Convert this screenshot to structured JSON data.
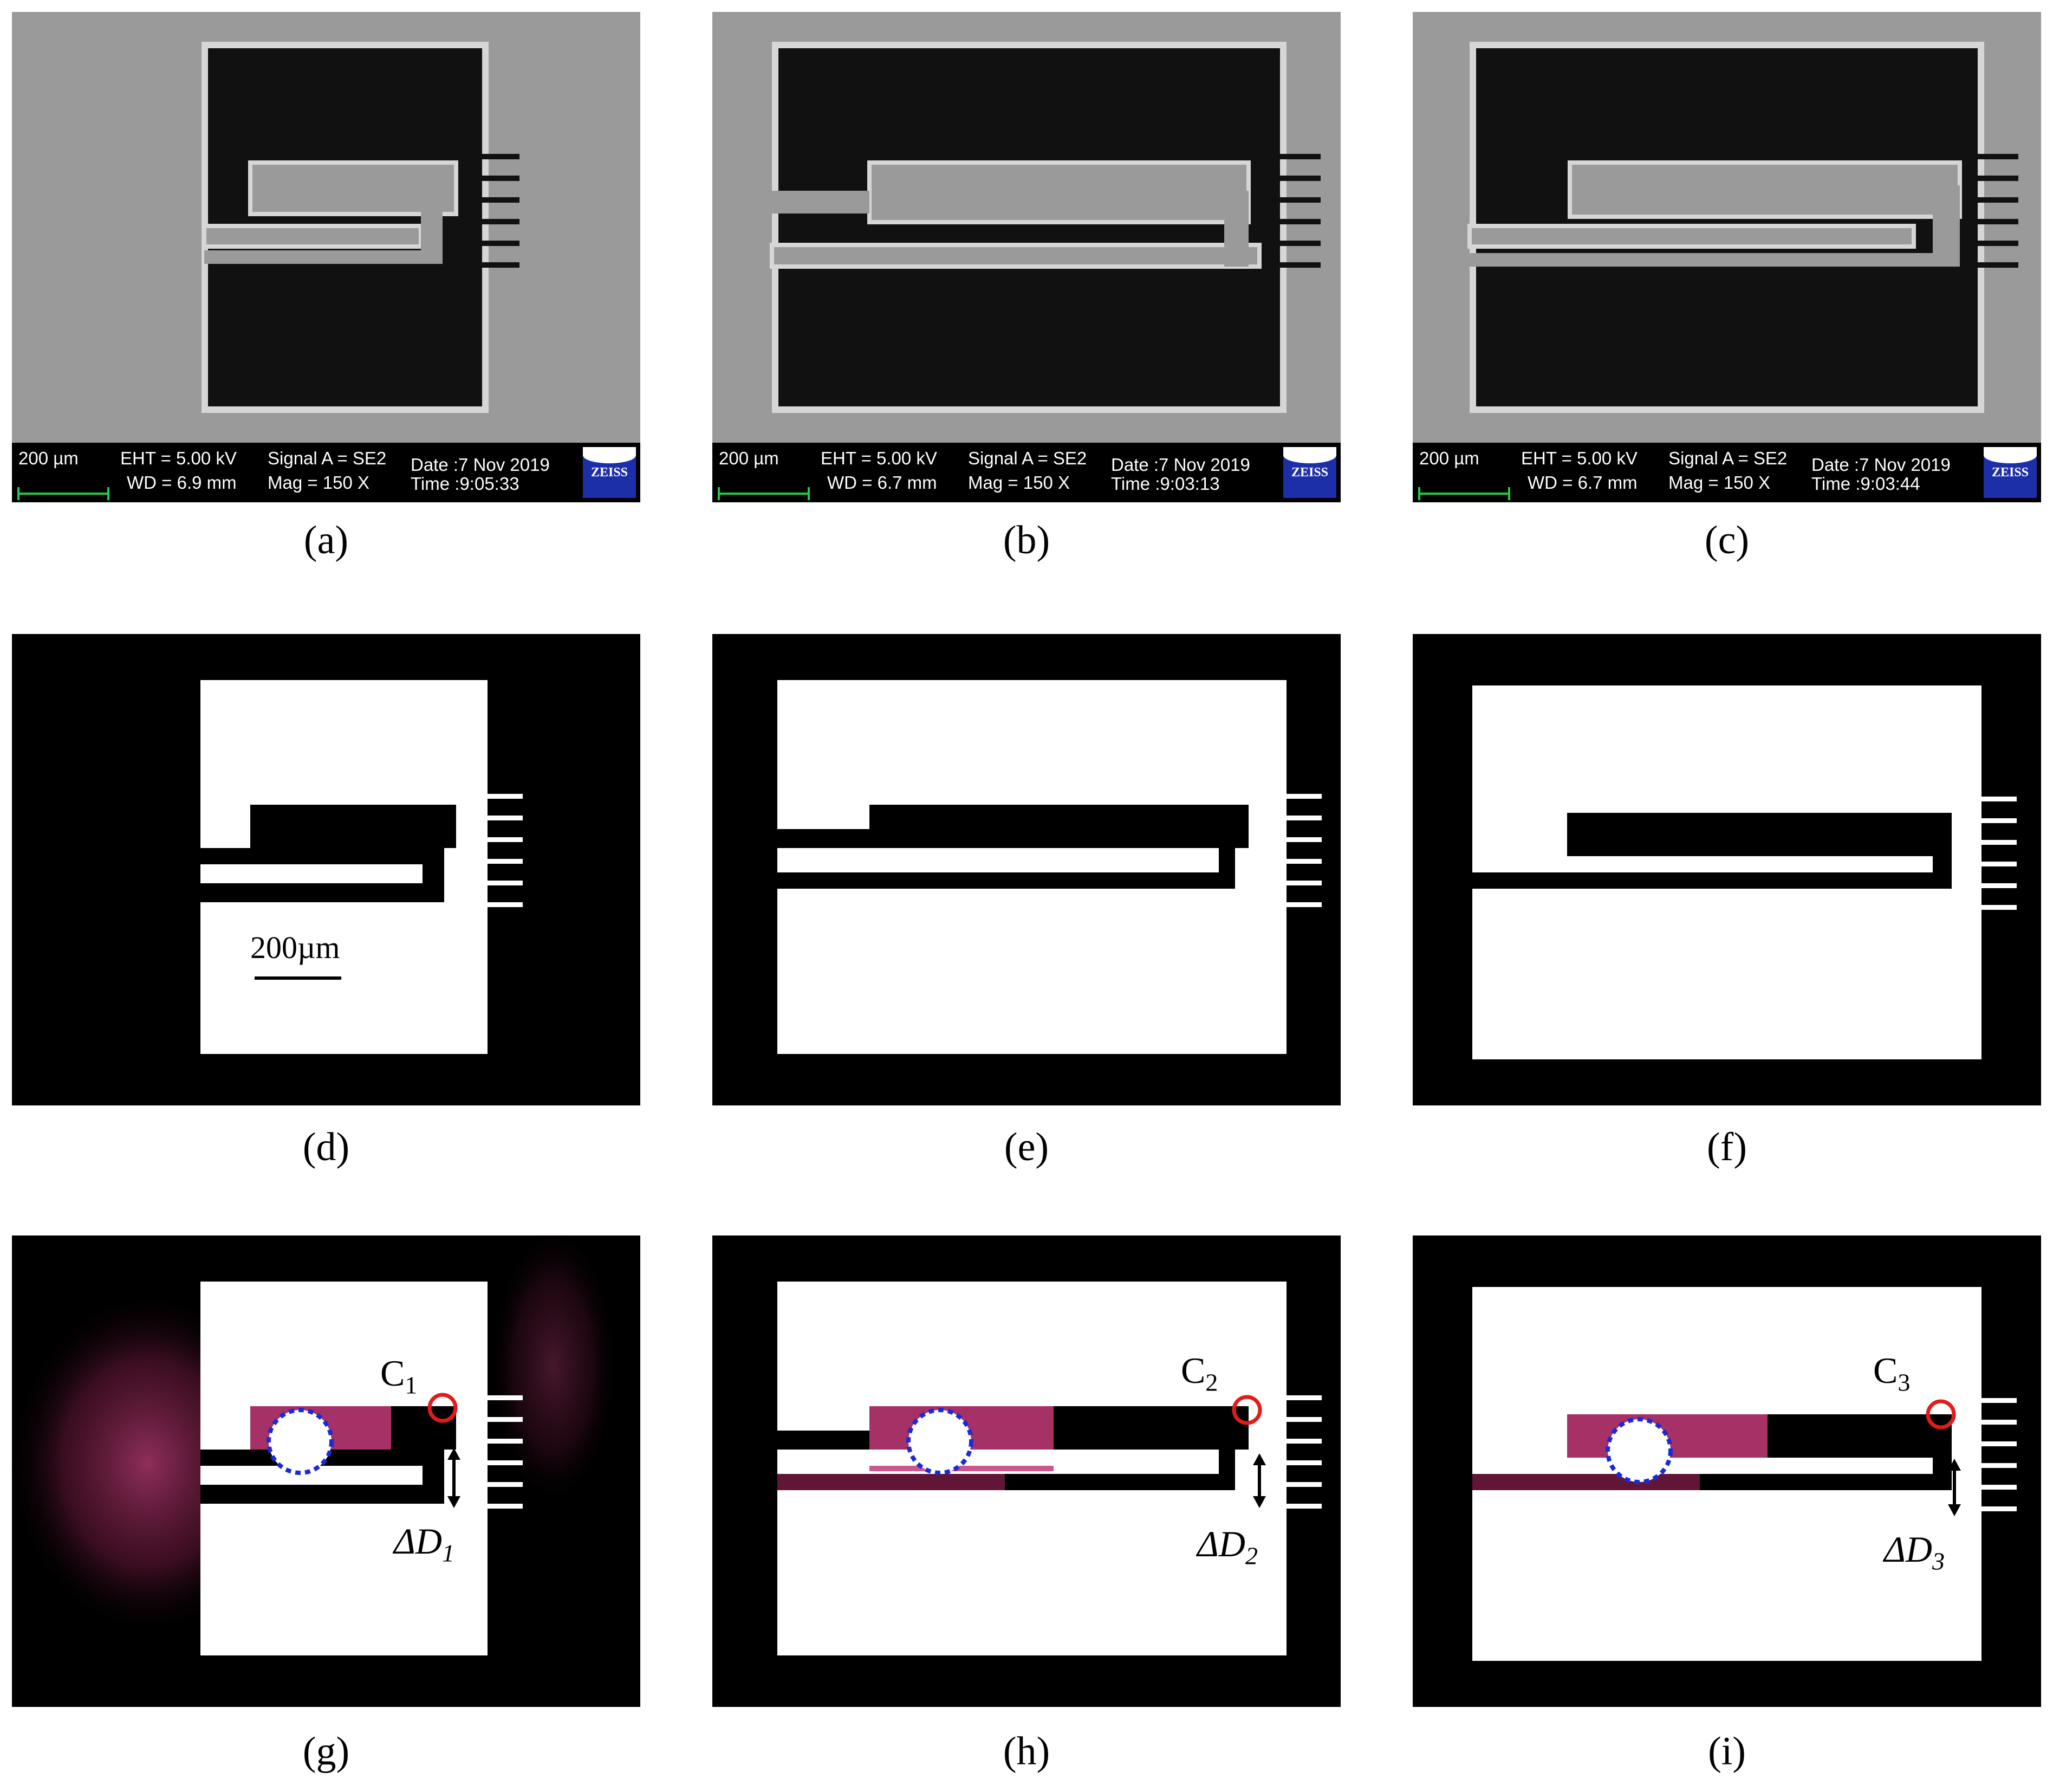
{
  "sem_info": [
    {
      "scale": "200 µm",
      "eht": "EHT =  5.00 kV",
      "wd": "WD =  6.9 mm",
      "signal": "Signal A = SE2",
      "mag": "Mag =    150 X",
      "date": "Date :7 Nov 2019",
      "time": "Time :9:05:33",
      "logo": "ZEISS"
    },
    {
      "scale": "200 µm",
      "eht": "EHT =  5.00 kV",
      "wd": "WD =  6.7 mm",
      "signal": "Signal A = SE2",
      "mag": "Mag =    150 X",
      "date": "Date :7 Nov 2019",
      "time": "Time :9:03:13",
      "logo": "ZEISS"
    },
    {
      "scale": "200 µm",
      "eht": "EHT =  5.00 kV",
      "wd": "WD =  6.7 mm",
      "signal": "Signal A = SE2",
      "mag": "Mag =    150 X",
      "date": "Date :7 Nov 2019",
      "time": "Time :9:03:44",
      "logo": "ZEISS"
    }
  ],
  "captions": [
    "(a)",
    "(b)",
    "(c)",
    "(d)",
    "(e)",
    "(f)",
    "(g)",
    "(h)",
    "(i)"
  ],
  "scale_label": "200µm",
  "annotations": {
    "g": {
      "c": "C",
      "c_sub": "1",
      "d": "ΔD",
      "d_sub": "1"
    },
    "h": {
      "c": "C",
      "c_sub": "2",
      "d": "ΔD",
      "d_sub": "2"
    },
    "i": {
      "c": "C",
      "c_sub": "3",
      "d": "ΔD",
      "d_sub": "3"
    }
  },
  "colors": {
    "sem_bg": "#9a9a9a",
    "sem_dark": "#111111",
    "binary_bg": "#000000",
    "binary_fg": "#ffffff",
    "marker": "#e31b1b",
    "circle": "#1a2ad8",
    "speckle": "#d0387a"
  }
}
